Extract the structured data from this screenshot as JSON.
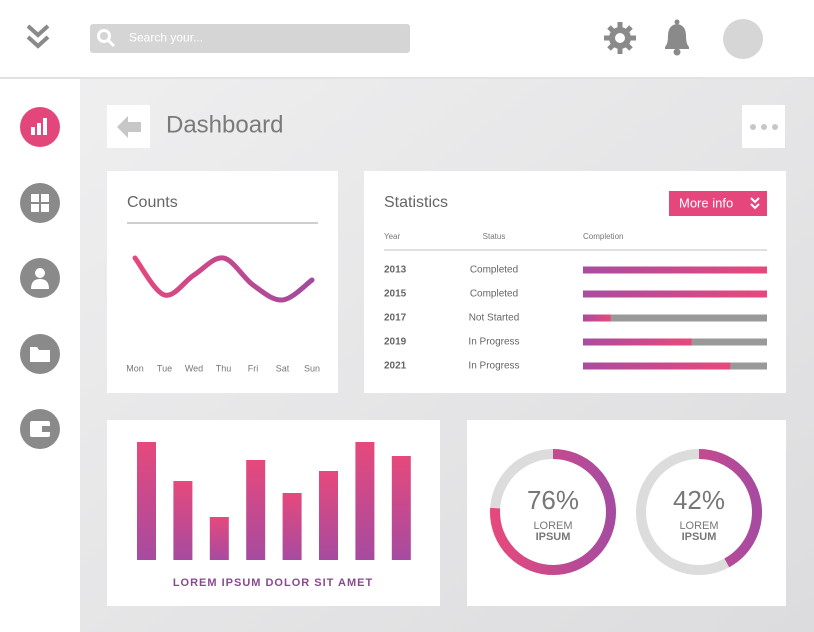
{
  "search_placeholder": "Search your...",
  "page_title": "Dashboard",
  "counts": {
    "title": "Counts",
    "days": [
      "Mon",
      "Tue",
      "Wed",
      "Thu",
      "Fri",
      "Sat",
      "Sun"
    ],
    "values": [
      72,
      35,
      55,
      72,
      45,
      30,
      50
    ]
  },
  "statistics": {
    "title": "Statistics",
    "button": "More info",
    "columns": [
      "Year",
      "Status",
      "Completion"
    ],
    "rows": [
      {
        "year": 2013,
        "status": "Completed",
        "completion": 100
      },
      {
        "year": 2015,
        "status": "Completed",
        "completion": 100
      },
      {
        "year": 2017,
        "status": "Not Started",
        "completion": 15
      },
      {
        "year": 2019,
        "status": "In Progress",
        "completion": 59
      },
      {
        "year": 2021,
        "status": "In Progress",
        "completion": 80
      }
    ]
  },
  "bars": {
    "caption": "LOREM IPSUM DOLOR SIT AMET",
    "values": [
      118,
      79,
      43,
      100,
      67,
      89,
      118,
      104
    ]
  },
  "donuts": {
    "values": [
      76,
      42
    ],
    "value_labels": [
      "76%",
      "42%"
    ],
    "captions": [
      [
        "LOREM",
        "IPSUM"
      ],
      [
        "LOREM",
        "IPSUM"
      ]
    ]
  }
}
